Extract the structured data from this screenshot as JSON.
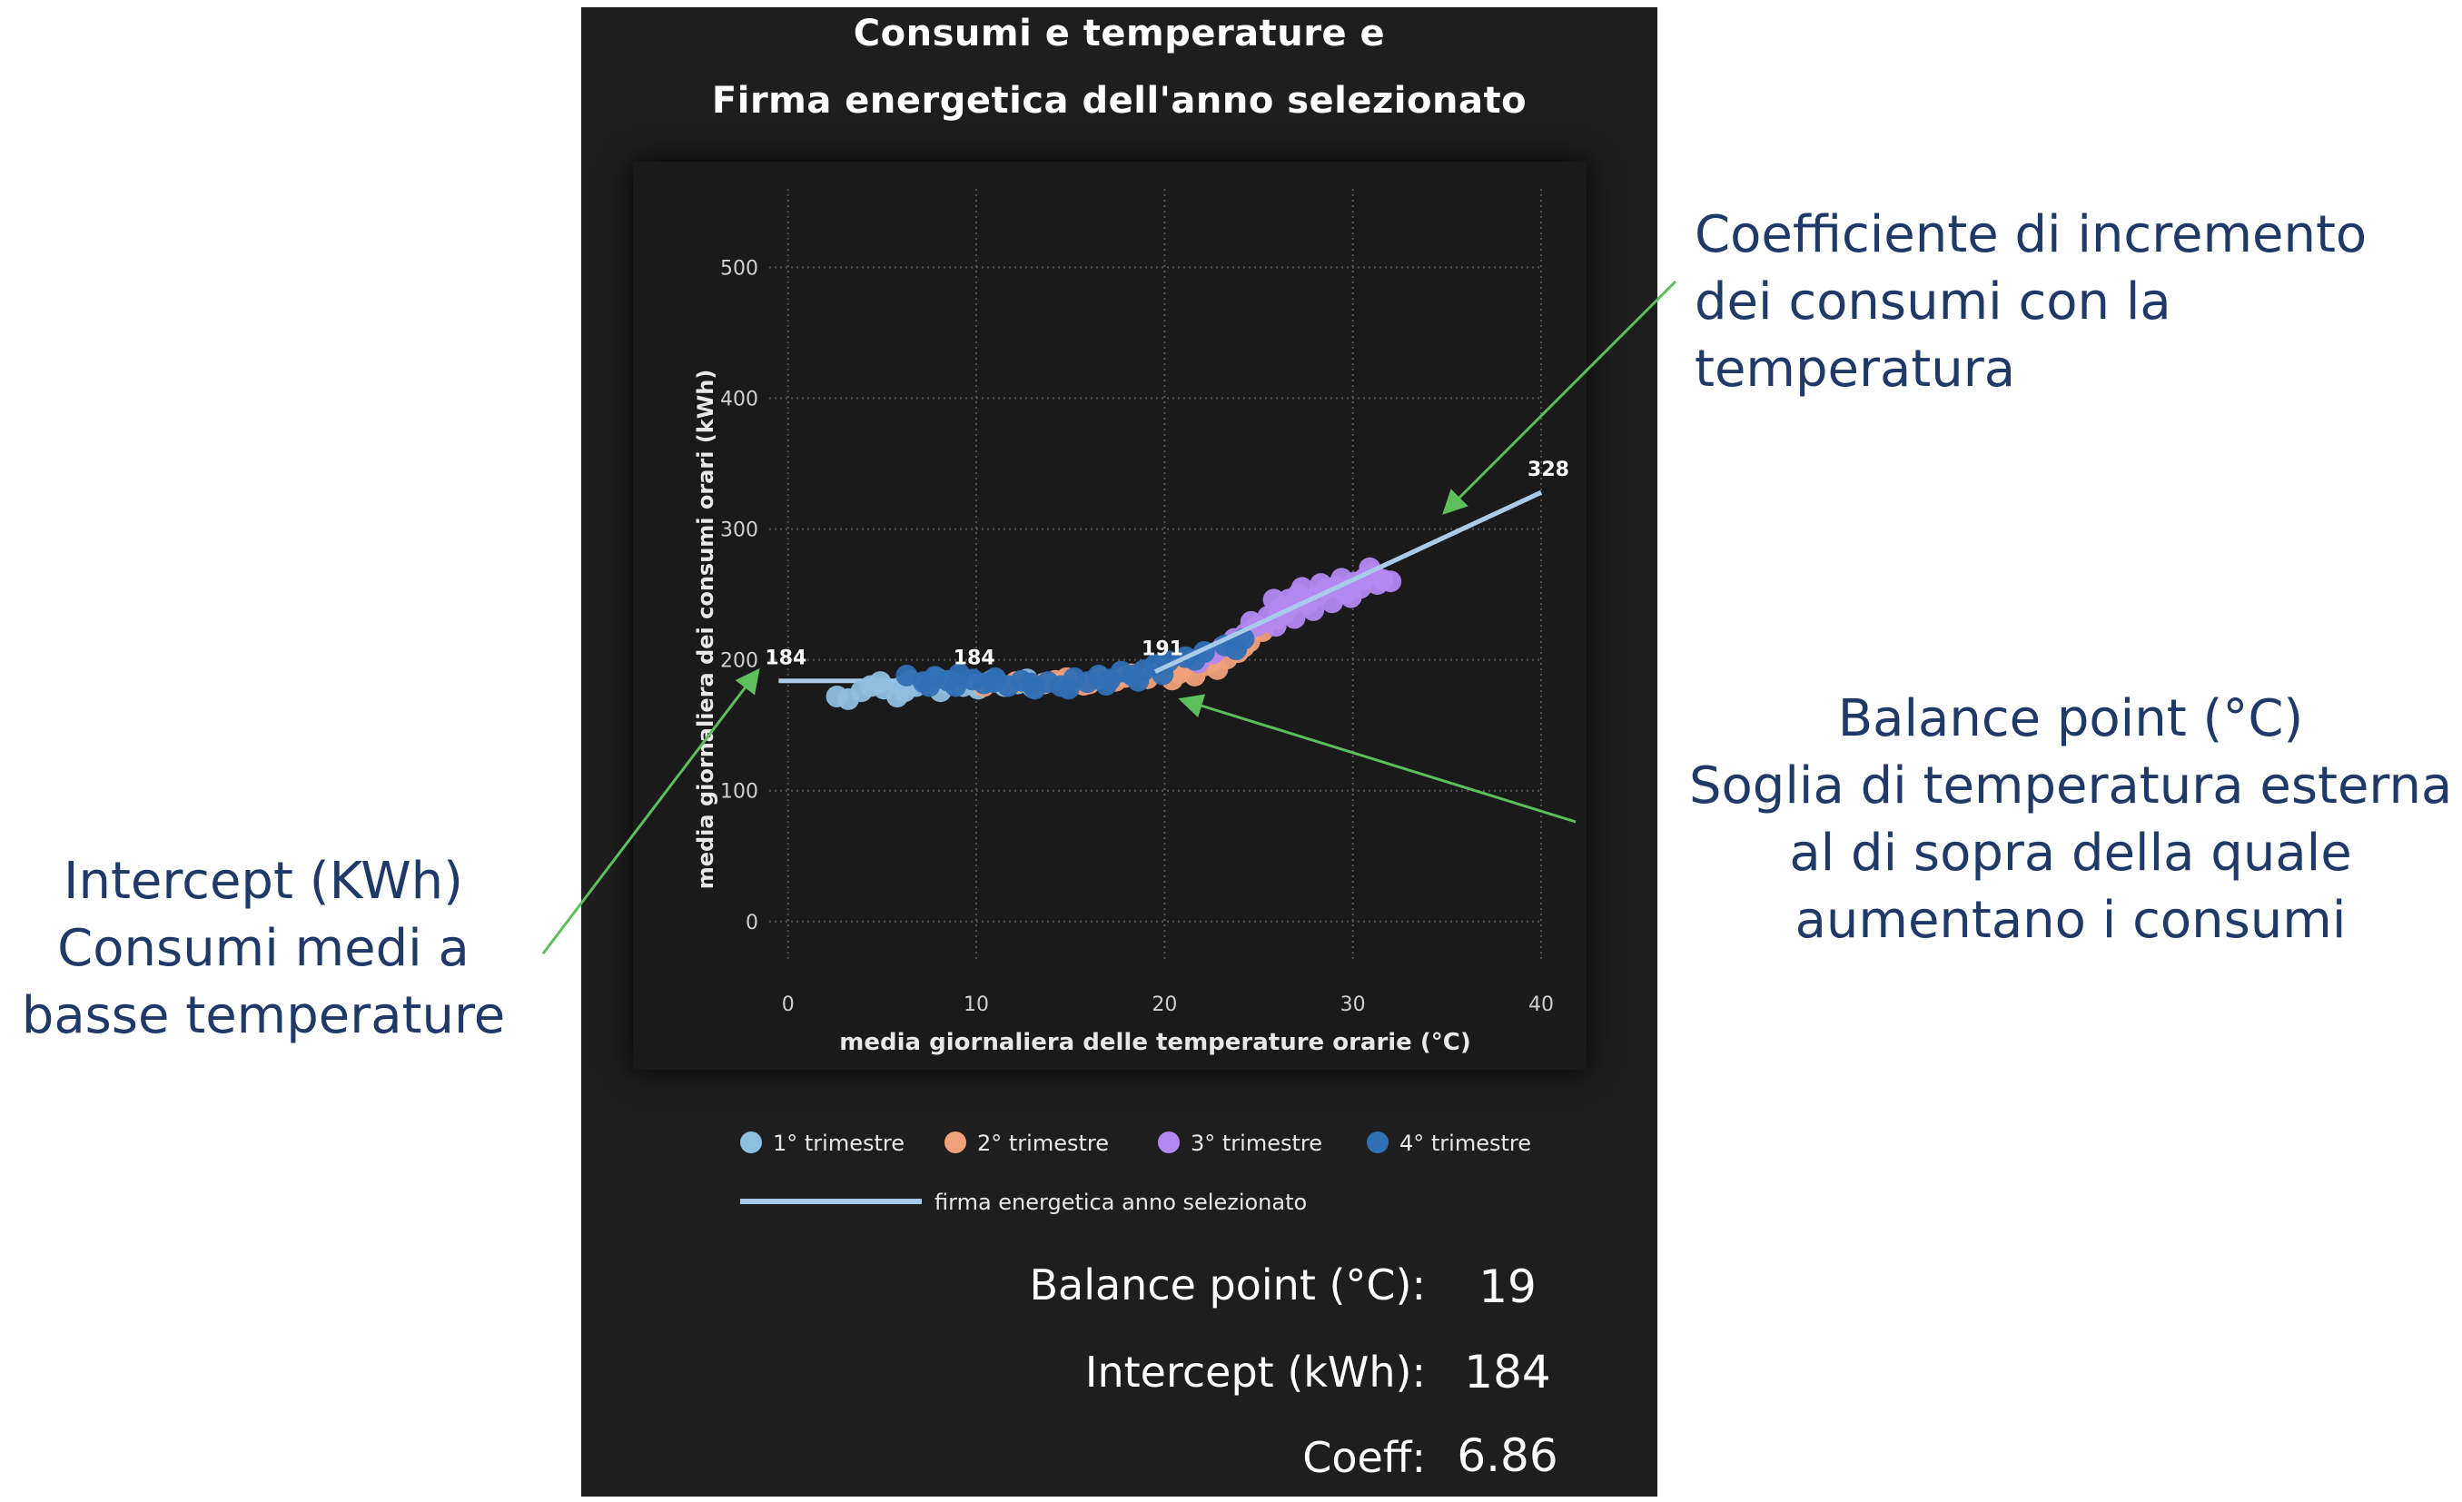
{
  "panel": {
    "title_line1": "Consumi e temperature e",
    "title_line2": "Firma energetica dell'anno selezionato"
  },
  "stats": [
    {
      "label": "Balance point (°C):",
      "value": "19"
    },
    {
      "label": "Intercept (kWh):",
      "value": "184"
    },
    {
      "label": "Coeff:",
      "value": "6.86"
    }
  ],
  "annotations": {
    "coefficient": [
      "Coefficiente di incremento",
      "dei consumi con la",
      "temperatura"
    ],
    "balance": [
      "Balance point (°C)",
      "Soglia di temperatura esterna",
      "al di sopra della quale",
      "aumentano i consumi"
    ],
    "intercept": [
      "Intercept (KWh)",
      "Consumi medi a",
      "basse temperature"
    ]
  },
  "chart_data": {
    "type": "scatter",
    "xlabel": "media giornaliera delle temperature orarie (°C)",
    "ylabel": "media giornaliera dei consumi orari (kWh)",
    "xlim": [
      -1,
      40
    ],
    "ylim": [
      -30,
      560
    ],
    "xticks": [
      0,
      10,
      20,
      30,
      40
    ],
    "yticks": [
      0,
      100,
      200,
      300,
      400,
      500
    ],
    "grid": true,
    "legend_position": "bottom",
    "series": [
      {
        "name": "1° trimestre",
        "color": "#8fbfe0",
        "points": [
          [
            2.6,
            172
          ],
          [
            3.2,
            170
          ],
          [
            4.4,
            180
          ],
          [
            5.1,
            178
          ],
          [
            5.8,
            172
          ],
          [
            6.2,
            176
          ],
          [
            6.8,
            180
          ],
          [
            7.4,
            182
          ],
          [
            8.1,
            176
          ],
          [
            8.7,
            183
          ],
          [
            9.3,
            180
          ],
          [
            10.1,
            178
          ],
          [
            10.8,
            184
          ],
          [
            11.5,
            180
          ],
          [
            12.2,
            182
          ],
          [
            13.0,
            179
          ],
          [
            6.5,
            184
          ],
          [
            7.9,
            186
          ],
          [
            9.9,
            181
          ],
          [
            4.9,
            183
          ],
          [
            6.0,
            179
          ],
          [
            8.4,
            182
          ],
          [
            11.1,
            183
          ],
          [
            12.7,
            185
          ],
          [
            3.9,
            176
          ]
        ]
      },
      {
        "name": "2° trimestre",
        "color": "#f0a07a",
        "points": [
          [
            10.4,
            180
          ],
          [
            12.1,
            183
          ],
          [
            13.6,
            182
          ],
          [
            14.8,
            186
          ],
          [
            15.7,
            181
          ],
          [
            16.6,
            186
          ],
          [
            17.4,
            184
          ],
          [
            18.2,
            189
          ],
          [
            19.1,
            186
          ],
          [
            19.8,
            191
          ],
          [
            20.4,
            185
          ],
          [
            21.0,
            194
          ],
          [
            21.6,
            188
          ],
          [
            22.2,
            196
          ],
          [
            22.8,
            193
          ],
          [
            23.3,
            201
          ],
          [
            23.9,
            206
          ],
          [
            24.5,
            214
          ],
          [
            25.2,
            222
          ],
          [
            26.0,
            231
          ],
          [
            26.6,
            240
          ],
          [
            27.1,
            246
          ],
          [
            14.2,
            184
          ],
          [
            16.0,
            182
          ],
          [
            17.9,
            187
          ],
          [
            20.8,
            190
          ],
          [
            22.5,
            199
          ],
          [
            24.2,
            210
          ]
        ]
      },
      {
        "name": "3° trimestre",
        "color": "#b388f0",
        "points": [
          [
            21.8,
            198
          ],
          [
            22.6,
            205
          ],
          [
            23.1,
            210
          ],
          [
            23.7,
            216
          ],
          [
            24.3,
            220
          ],
          [
            24.9,
            226
          ],
          [
            25.5,
            233
          ],
          [
            26.1,
            239
          ],
          [
            26.6,
            246
          ],
          [
            27.1,
            250
          ],
          [
            27.6,
            243
          ],
          [
            28.1,
            249
          ],
          [
            28.6,
            254
          ],
          [
            29.1,
            256
          ],
          [
            29.6,
            251
          ],
          [
            30.1,
            259
          ],
          [
            30.6,
            262
          ],
          [
            31.1,
            266
          ],
          [
            31.6,
            261
          ],
          [
            32.0,
            260
          ],
          [
            29.9,
            248
          ],
          [
            28.9,
            244
          ],
          [
            27.9,
            238
          ],
          [
            26.9,
            232
          ],
          [
            25.9,
            226
          ],
          [
            24.6,
            229
          ],
          [
            25.8,
            246
          ],
          [
            27.3,
            255
          ],
          [
            28.3,
            258
          ],
          [
            30.4,
            255
          ],
          [
            31.3,
            258
          ],
          [
            26.4,
            236
          ],
          [
            23.5,
            212
          ],
          [
            29.4,
            262
          ],
          [
            30.9,
            270
          ]
        ]
      },
      {
        "name": "4° trimestre",
        "color": "#2f6fb5",
        "points": [
          [
            6.3,
            188
          ],
          [
            7.2,
            183
          ],
          [
            7.8,
            187
          ],
          [
            8.5,
            184
          ],
          [
            9.1,
            189
          ],
          [
            9.8,
            185
          ],
          [
            10.4,
            182
          ],
          [
            11.0,
            186
          ],
          [
            11.7,
            180
          ],
          [
            12.4,
            184
          ],
          [
            13.1,
            178
          ],
          [
            13.8,
            183
          ],
          [
            14.5,
            180
          ],
          [
            15.2,
            186
          ],
          [
            15.9,
            183
          ],
          [
            16.5,
            188
          ],
          [
            17.1,
            185
          ],
          [
            17.7,
            191
          ],
          [
            18.3,
            188
          ],
          [
            18.9,
            192
          ],
          [
            19.5,
            196
          ],
          [
            20.2,
            199
          ],
          [
            21.1,
            202
          ],
          [
            22.1,
            206
          ],
          [
            23.2,
            211
          ],
          [
            24.2,
            216
          ],
          [
            8.9,
            180
          ],
          [
            10.9,
            183
          ],
          [
            12.9,
            182
          ],
          [
            14.9,
            178
          ],
          [
            16.9,
            181
          ],
          [
            18.6,
            184
          ],
          [
            19.9,
            189
          ],
          [
            21.6,
            200
          ],
          [
            23.8,
            208
          ],
          [
            7.5,
            180
          ]
        ]
      }
    ],
    "signature_line": {
      "name": "firma energetica anno selezionato",
      "color": "#a9cbea",
      "points": [
        [
          -0.5,
          184
        ],
        [
          19,
          184
        ],
        [
          19.5,
          191
        ],
        [
          40,
          328
        ]
      ],
      "labels": [
        {
          "x": -0.5,
          "y": 184,
          "text": "184"
        },
        {
          "x": 9.5,
          "y": 184,
          "text": "184"
        },
        {
          "x": 19.5,
          "y": 191,
          "text": "191"
        },
        {
          "x": 40,
          "y": 328,
          "text": "328"
        }
      ]
    }
  }
}
